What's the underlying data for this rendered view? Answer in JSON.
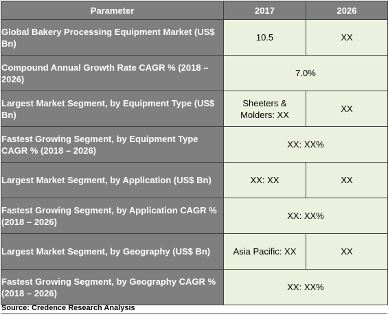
{
  "table": {
    "headers": [
      "Parameter",
      "2017",
      "2026"
    ],
    "rows": [
      {
        "parameter": "Global Bakery Processing Equipment Market (US$ Bn)",
        "v2017": "10.5",
        "v2026": "XX"
      },
      {
        "parameter": "Compound Annual Growth Rate CAGR % (2018 – 2026)",
        "merged": "7.0%"
      },
      {
        "parameter": "Largest Market Segment, by Equipment Type (US$ Bn)",
        "v2017": "Sheeters & Molders: XX",
        "v2026": "XX"
      },
      {
        "parameter": "Fastest Growing Segment, by Equipment Type CAGR % (2018 – 2026)",
        "merged": "XX: XX%"
      },
      {
        "parameter": "Largest Market Segment, by Application (US$ Bn)",
        "v2017": "XX: XX",
        "v2026": "XX"
      },
      {
        "parameter": "Fastest Growing Segment, by Application CAGR % (2018 – 2026)",
        "merged": "XX: XX%"
      },
      {
        "parameter": "Largest Market Segment, by Geography (US$ Bn)",
        "v2017": "Asia Pacific: XX",
        "v2026": "XX"
      },
      {
        "parameter": "Fastest Growing Segment, by Geography CAGR % (2018 – 2026)",
        "merged": "XX: XX%"
      }
    ]
  },
  "source": "Source: Credence Research Analysis",
  "colors": {
    "header_bg": "#7f7f7f",
    "value_bg": "#ebf1de",
    "border": "#3f3f3f"
  }
}
